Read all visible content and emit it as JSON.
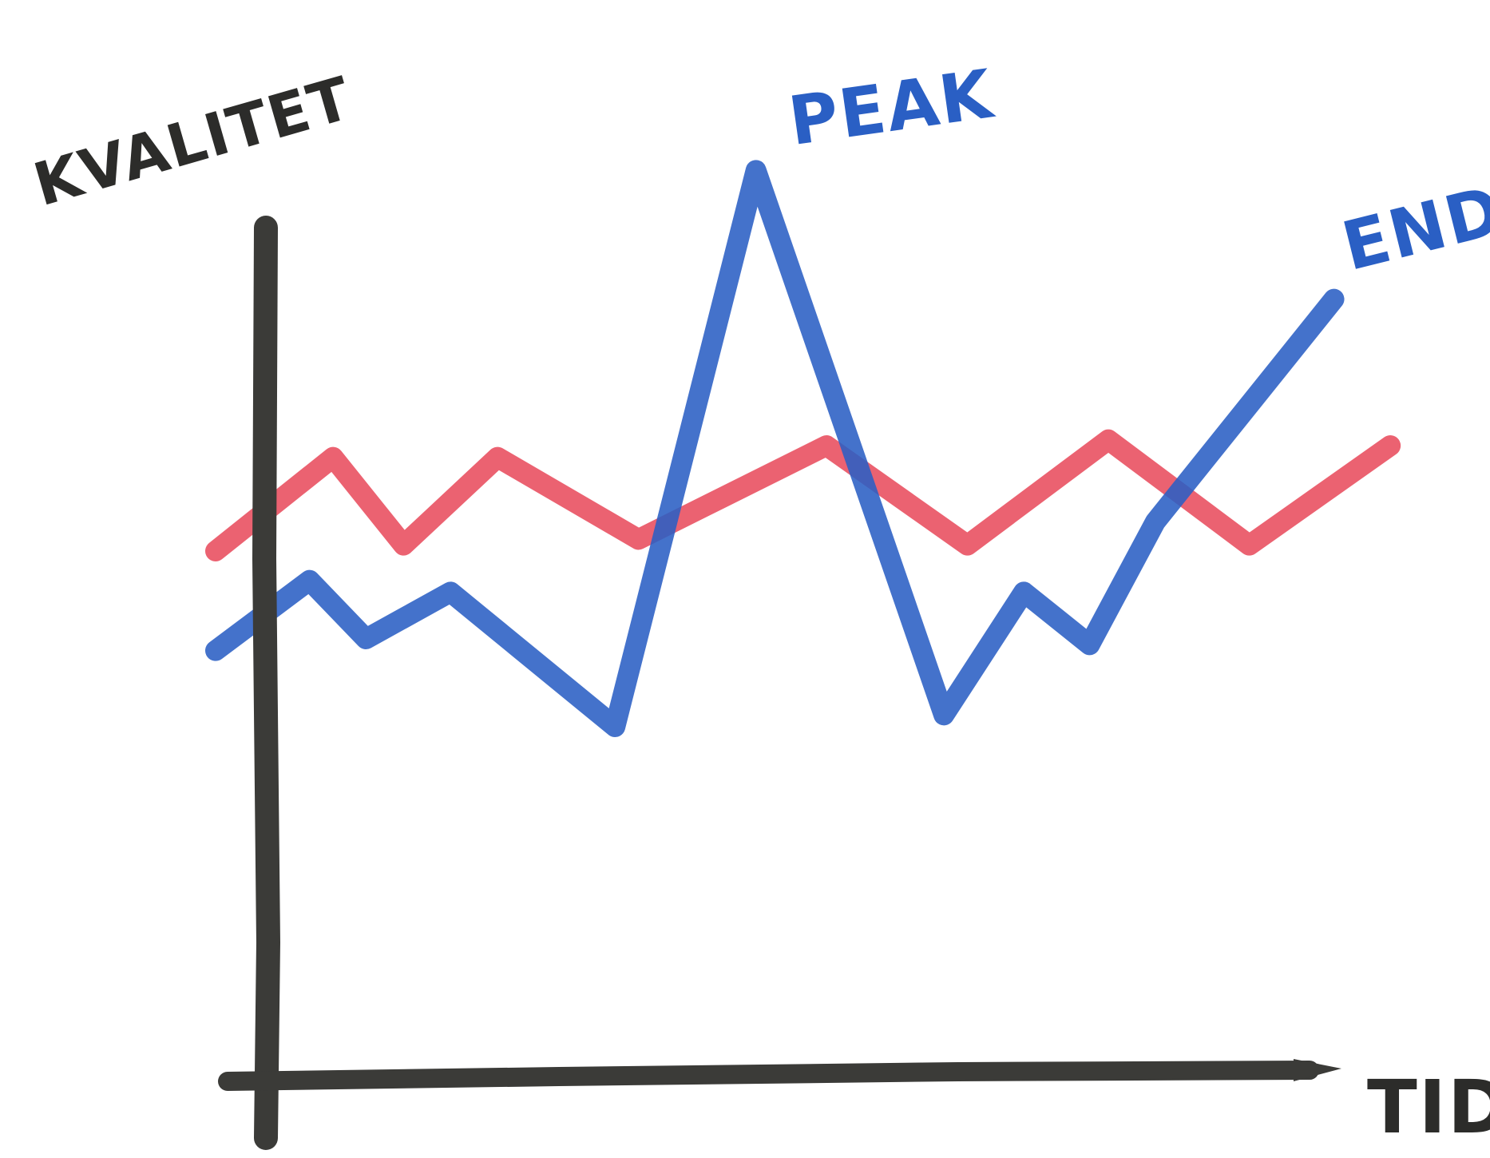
{
  "chart_data": {
    "type": "line",
    "title": "",
    "xlabel": "TID",
    "ylabel": "KVALITET",
    "grid": false,
    "legend": "none",
    "x": [
      0,
      1,
      2,
      3,
      4,
      5,
      6,
      7,
      8,
      9,
      10,
      11,
      12,
      13,
      14,
      15,
      16,
      17,
      18,
      19,
      20,
      21,
      22,
      23,
      24,
      25
    ],
    "series": [
      {
        "color": "#e84c5d",
        "x": [
          0,
          2.5,
          4,
          6,
          9,
          13,
          16,
          19,
          22,
          25
        ],
        "values": [
          4.5,
          6.1,
          4.6,
          6.1,
          4.7,
          6.3,
          4.6,
          6.4,
          4.6,
          6.3
        ]
      },
      {
        "color": "#2a5fc4",
        "x": [
          0,
          2,
          3.2,
          5,
          8.5,
          11.5,
          15.5,
          17.2,
          18.6,
          20,
          23.8
        ],
        "values": [
          2.8,
          4.0,
          3.0,
          3.8,
          1.5,
          11.0,
          1.7,
          3.8,
          2.9,
          5.0,
          8.8
        ]
      }
    ],
    "annotations": [
      {
        "text": "PEAK",
        "series": 1,
        "x": 11.5
      },
      {
        "text": "END",
        "series": 1,
        "x": 23.8
      }
    ],
    "xlim": [
      0,
      26
    ],
    "ylim": [
      0,
      12
    ]
  },
  "colors": {
    "axis": "#3b3b38",
    "peak_end_text": "#2a5fc4",
    "axis_text": "#2c2c2a"
  }
}
